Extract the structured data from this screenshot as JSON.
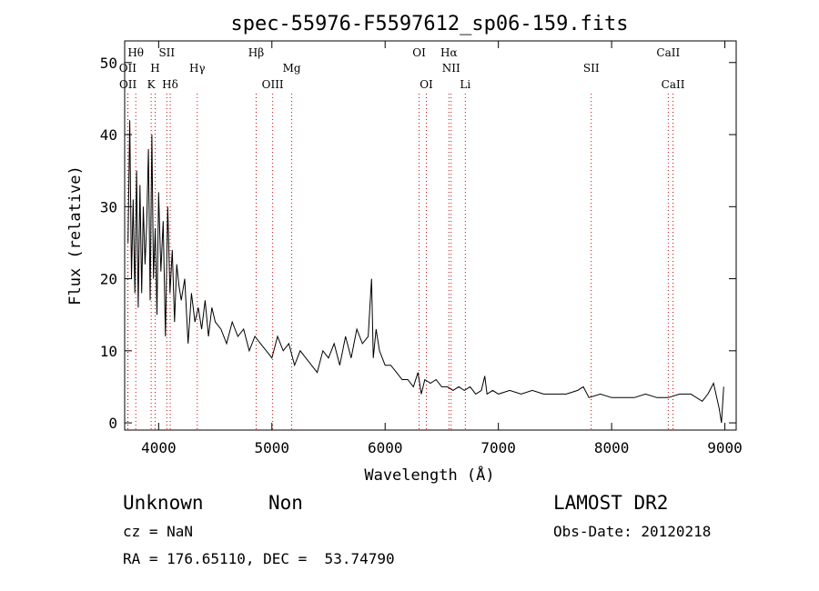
{
  "chart_data": {
    "type": "line",
    "title": "spec-55976-F5597612_sp06-159.fits",
    "xlabel": "Wavelength (Å)",
    "ylabel": "Flux (relative)",
    "xlim": [
      3700,
      9100
    ],
    "ylim": [
      -1,
      53
    ],
    "x_ticks": [
      4000,
      5000,
      6000,
      7000,
      8000,
      9000
    ],
    "y_ticks": [
      0,
      10,
      20,
      30,
      40,
      50
    ],
    "grid": false,
    "line_color": "#000000",
    "line_marker_color": "#cc0000",
    "series": [
      {
        "x": [
          3730,
          3745,
          3760,
          3775,
          3790,
          3805,
          3820,
          3835,
          3850,
          3865,
          3880,
          3895,
          3910,
          3925,
          3940,
          3955,
          3970,
          3985,
          4000,
          4020,
          4040,
          4060,
          4080,
          4100,
          4120,
          4140,
          4160,
          4180,
          4200,
          4230,
          4260,
          4290,
          4320,
          4350,
          4380,
          4410,
          4440,
          4470,
          4500,
          4550,
          4600,
          4650,
          4700,
          4750,
          4800,
          4850,
          4900,
          4950,
          5000,
          5050,
          5100,
          5150,
          5200,
          5250,
          5300,
          5350,
          5400,
          5450,
          5500,
          5550,
          5600,
          5650,
          5700,
          5750,
          5800,
          5850,
          5880,
          5895,
          5920,
          5950,
          6000,
          6050,
          6100,
          6150,
          6200,
          6250,
          6290,
          6320,
          6350,
          6400,
          6450,
          6500,
          6550,
          6600,
          6650,
          6700,
          6750,
          6800,
          6850,
          6880,
          6900,
          6950,
          7000,
          7100,
          7200,
          7300,
          7400,
          7500,
          7600,
          7700,
          7750,
          7800,
          7900,
          8000,
          8100,
          8200,
          8300,
          8400,
          8500,
          8600,
          8700,
          8800,
          8850,
          8900,
          8950,
          8970,
          8990
        ],
        "y": [
          25,
          42,
          20,
          31,
          18,
          35,
          16,
          33,
          18,
          30,
          22,
          28,
          38,
          17,
          40,
          20,
          27,
          15,
          32,
          21,
          28,
          12,
          30,
          18,
          24,
          14,
          22,
          19,
          17,
          20,
          11,
          18,
          14,
          16,
          13,
          17,
          12,
          16,
          14,
          13,
          11,
          14,
          12,
          13,
          10,
          12,
          11,
          10,
          9,
          12,
          10,
          11,
          8,
          10,
          9,
          8,
          7,
          10,
          9,
          11,
          8,
          12,
          9,
          13,
          11,
          12,
          20,
          9,
          13,
          10,
          8,
          8,
          7,
          6,
          6,
          5,
          7,
          4,
          6,
          5.5,
          6,
          5,
          5,
          4.5,
          5,
          4.5,
          5,
          4,
          4.5,
          6.5,
          4,
          4.5,
          4,
          4.5,
          4,
          4.5,
          4,
          4,
          4,
          4.5,
          5,
          3.5,
          4,
          3.5,
          3.5,
          3.5,
          4,
          3.5,
          3.5,
          4,
          4,
          3,
          4,
          5.5,
          2,
          0,
          5
        ]
      }
    ],
    "line_markers": [
      {
        "wl": 3727,
        "label": "OII",
        "row": 1
      },
      {
        "wl": 3729,
        "label": "OII",
        "row": 2
      },
      {
        "wl": 3798,
        "label": "Hθ",
        "row": 0
      },
      {
        "wl": 3934,
        "label": "K",
        "row": 2
      },
      {
        "wl": 3969,
        "label": "H",
        "row": 1
      },
      {
        "wl": 4072,
        "label": "SII",
        "row": 0
      },
      {
        "wl": 4102,
        "label": "Hδ",
        "row": 2
      },
      {
        "wl": 4341,
        "label": "Hγ",
        "row": 1
      },
      {
        "wl": 4861,
        "label": "Hβ",
        "row": 0
      },
      {
        "wl": 5007,
        "label": "OIII",
        "row": 2
      },
      {
        "wl": 5175,
        "label": "Mg",
        "row": 1
      },
      {
        "wl": 6300,
        "label": "OI",
        "row": 0
      },
      {
        "wl": 6364,
        "label": "OI",
        "row": 2
      },
      {
        "wl": 6563,
        "label": "Hα",
        "row": 0
      },
      {
        "wl": 6583,
        "label": "NII",
        "row": 1
      },
      {
        "wl": 6708,
        "label": "Li",
        "row": 2
      },
      {
        "wl": 7820,
        "label": "SII",
        "row": 1
      },
      {
        "wl": 8500,
        "label": "CaII",
        "row": 0
      },
      {
        "wl": 8542,
        "label": "CaII",
        "row": 2
      }
    ]
  },
  "footer": {
    "class_label": "Unknown",
    "subclass_label": "Non",
    "survey": "LAMOST DR2",
    "cz": "cz = NaN",
    "obs_date": "Obs-Date: 20120218",
    "coords": "RA = 176.65110, DEC =  53.74790"
  }
}
